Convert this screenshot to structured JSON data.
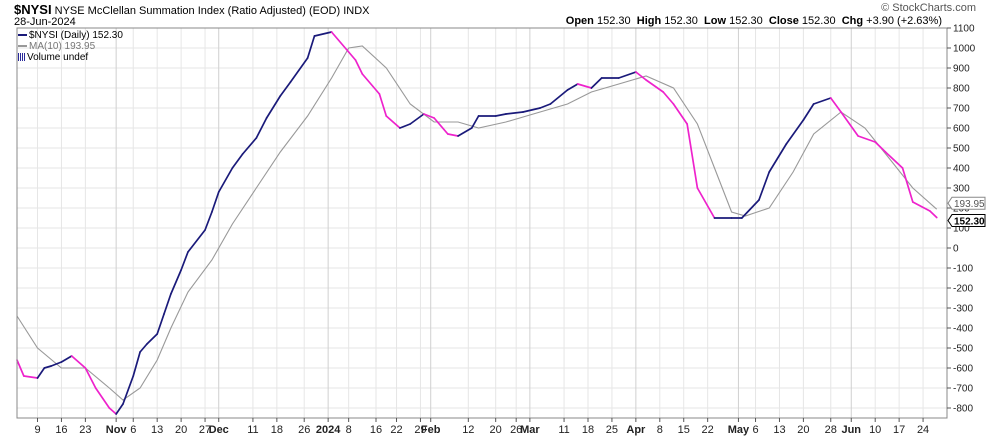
{
  "header": {
    "symbol": "$NYSI",
    "description": "NYSE McClellan Summation Index (Ratio Adjusted) (EOD)",
    "exchange": "INDX",
    "date": "28-Jun-2024",
    "brand": "© StockCharts.com",
    "open_label": "Open",
    "open": "152.30",
    "high_label": "High",
    "high": "152.30",
    "low_label": "Low",
    "low": "152.30",
    "close_label": "Close",
    "close": "152.30",
    "chg_label": "Chg",
    "chg": "+3.90 (+2.63%)"
  },
  "legend": {
    "price": "$NYSI (Daily) 152.30",
    "ma": "MA(10) 193.95",
    "volume": "Volume undef"
  },
  "colors": {
    "up": "#1a1a7a",
    "down": "#ee22cc",
    "ma": "#999999",
    "grid": "#e6e6e6",
    "axis": "#555555"
  },
  "chart_data": {
    "type": "line",
    "title": "NYSE McClellan Summation Index (Ratio Adjusted) (EOD)",
    "ylabel": "",
    "xlabel": "",
    "ylim": [
      -850,
      1100
    ],
    "y_ticks": [
      1100,
      1000,
      900,
      800,
      700,
      600,
      500,
      400,
      300,
      200,
      100,
      0,
      -100,
      -200,
      -300,
      -400,
      -500,
      -600,
      -700,
      -800
    ],
    "y_tick_labels": [
      "1100",
      "1000",
      "900",
      "800",
      "700",
      "600",
      "500",
      "400",
      "300",
      "200",
      "100",
      "0",
      "-100",
      "-200",
      "-300",
      "-400",
      "-500",
      "-600",
      "-700",
      "-800"
    ],
    "x_range": [
      "2023-10-03",
      "2024-07-01"
    ],
    "x_ticks": [
      {
        "date": "2023-10-09",
        "label": "9",
        "bold": false
      },
      {
        "date": "2023-10-16",
        "label": "16",
        "bold": false
      },
      {
        "date": "2023-10-23",
        "label": "23",
        "bold": false
      },
      {
        "date": "2023-11-01",
        "label": "Nov",
        "bold": true
      },
      {
        "date": "2023-11-06",
        "label": "6",
        "bold": false
      },
      {
        "date": "2023-11-13",
        "label": "13",
        "bold": false
      },
      {
        "date": "2023-11-20",
        "label": "20",
        "bold": false
      },
      {
        "date": "2023-11-27",
        "label": "27",
        "bold": false
      },
      {
        "date": "2023-12-01",
        "label": "Dec",
        "bold": true
      },
      {
        "date": "2023-12-11",
        "label": "11",
        "bold": false
      },
      {
        "date": "2023-12-18",
        "label": "18",
        "bold": false
      },
      {
        "date": "2023-12-26",
        "label": "26",
        "bold": false
      },
      {
        "date": "2024-01-02",
        "label": "2024",
        "bold": true
      },
      {
        "date": "2024-01-08",
        "label": "8",
        "bold": false
      },
      {
        "date": "2024-01-16",
        "label": "16",
        "bold": false
      },
      {
        "date": "2024-01-22",
        "label": "22",
        "bold": false
      },
      {
        "date": "2024-01-29",
        "label": "29",
        "bold": false
      },
      {
        "date": "2024-02-01",
        "label": "Feb",
        "bold": true
      },
      {
        "date": "2024-02-12",
        "label": "12",
        "bold": false
      },
      {
        "date": "2024-02-20",
        "label": "20",
        "bold": false
      },
      {
        "date": "2024-02-26",
        "label": "26",
        "bold": false
      },
      {
        "date": "2024-03-01",
        "label": "Mar",
        "bold": true
      },
      {
        "date": "2024-03-11",
        "label": "11",
        "bold": false
      },
      {
        "date": "2024-03-18",
        "label": "18",
        "bold": false
      },
      {
        "date": "2024-03-25",
        "label": "25",
        "bold": false
      },
      {
        "date": "2024-04-01",
        "label": "Apr",
        "bold": true
      },
      {
        "date": "2024-04-08",
        "label": "8",
        "bold": false
      },
      {
        "date": "2024-04-15",
        "label": "15",
        "bold": false
      },
      {
        "date": "2024-04-22",
        "label": "22",
        "bold": false
      },
      {
        "date": "2024-05-01",
        "label": "May",
        "bold": true
      },
      {
        "date": "2024-05-06",
        "label": "6",
        "bold": false
      },
      {
        "date": "2024-05-13",
        "label": "13",
        "bold": false
      },
      {
        "date": "2024-05-20",
        "label": "20",
        "bold": false
      },
      {
        "date": "2024-05-28",
        "label": "28",
        "bold": false
      },
      {
        "date": "2024-06-03",
        "label": "Jun",
        "bold": true
      },
      {
        "date": "2024-06-10",
        "label": "10",
        "bold": false
      },
      {
        "date": "2024-06-17",
        "label": "17",
        "bold": false
      },
      {
        "date": "2024-06-24",
        "label": "24",
        "bold": false
      }
    ],
    "last_values": [
      {
        "label": "193.95",
        "value": 193.95,
        "bold": false
      },
      {
        "label": "152.30",
        "value": 152.3,
        "bold": true
      }
    ],
    "series": [
      {
        "name": "$NYSI (Daily) 152.30",
        "x": [
          "2023-10-03",
          "2023-10-05",
          "2023-10-09",
          "2023-10-11",
          "2023-10-13",
          "2023-10-16",
          "2023-10-19",
          "2023-10-23",
          "2023-10-26",
          "2023-10-30",
          "2023-11-01",
          "2023-11-03",
          "2023-11-06",
          "2023-11-08",
          "2023-11-10",
          "2023-11-13",
          "2023-11-15",
          "2023-11-17",
          "2023-11-20",
          "2023-11-22",
          "2023-11-27",
          "2023-11-29",
          "2023-12-01",
          "2023-12-05",
          "2023-12-08",
          "2023-12-12",
          "2023-12-15",
          "2023-12-19",
          "2023-12-22",
          "2023-12-27",
          "2023-12-29",
          "2024-01-03",
          "2024-01-08",
          "2024-01-10",
          "2024-01-12",
          "2024-01-17",
          "2024-01-19",
          "2024-01-23",
          "2024-01-26",
          "2024-01-30",
          "2024-02-02",
          "2024-02-06",
          "2024-02-09",
          "2024-02-13",
          "2024-02-15",
          "2024-02-20",
          "2024-02-23",
          "2024-02-28",
          "2024-03-04",
          "2024-03-07",
          "2024-03-12",
          "2024-03-15",
          "2024-03-19",
          "2024-03-22",
          "2024-03-27",
          "2024-04-01",
          "2024-04-04",
          "2024-04-09",
          "2024-04-12",
          "2024-04-16",
          "2024-04-19",
          "2024-04-24",
          "2024-04-29",
          "2024-05-02",
          "2024-05-07",
          "2024-05-10",
          "2024-05-15",
          "2024-05-20",
          "2024-05-23",
          "2024-05-28",
          "2024-05-31",
          "2024-06-05",
          "2024-06-10",
          "2024-06-13",
          "2024-06-18",
          "2024-06-21",
          "2024-06-26",
          "2024-06-28"
        ],
        "values": [
          -560,
          -640,
          -650,
          -600,
          -590,
          -570,
          -540,
          -600,
          -700,
          -800,
          -830,
          -780,
          -640,
          -520,
          -480,
          -430,
          -330,
          -230,
          -110,
          -20,
          90,
          180,
          280,
          400,
          470,
          550,
          650,
          760,
          830,
          950,
          1060,
          1080,
          980,
          940,
          870,
          770,
          660,
          600,
          620,
          670,
          650,
          570,
          560,
          600,
          660,
          660,
          670,
          680,
          700,
          720,
          790,
          820,
          800,
          850,
          850,
          880,
          840,
          780,
          720,
          620,
          300,
          150,
          150,
          150,
          240,
          380,
          520,
          640,
          720,
          750,
          680,
          560,
          530,
          480,
          400,
          230,
          185,
          152.3
        ],
        "color_rule": "up segments #1a1a7a, down segments #ee22cc"
      },
      {
        "name": "MA(10) 193.95",
        "x": [
          "2023-10-03",
          "2023-10-09",
          "2023-10-16",
          "2023-10-23",
          "2023-10-30",
          "2023-11-03",
          "2023-11-08",
          "2023-11-13",
          "2023-11-17",
          "2023-11-22",
          "2023-11-29",
          "2023-12-05",
          "2023-12-12",
          "2023-12-19",
          "2023-12-27",
          "2024-01-03",
          "2024-01-08",
          "2024-01-12",
          "2024-01-19",
          "2024-01-26",
          "2024-02-02",
          "2024-02-09",
          "2024-02-15",
          "2024-02-23",
          "2024-03-04",
          "2024-03-12",
          "2024-03-19",
          "2024-03-27",
          "2024-04-04",
          "2024-04-12",
          "2024-04-19",
          "2024-04-24",
          "2024-04-29",
          "2024-05-03",
          "2024-05-10",
          "2024-05-17",
          "2024-05-23",
          "2024-05-31",
          "2024-06-07",
          "2024-06-14",
          "2024-06-21",
          "2024-06-28"
        ],
        "values": [
          -340,
          -500,
          -600,
          -600,
          -700,
          -760,
          -700,
          -560,
          -400,
          -220,
          -60,
          120,
          300,
          480,
          660,
          850,
          1000,
          1010,
          900,
          720,
          630,
          630,
          600,
          630,
          680,
          720,
          780,
          820,
          860,
          800,
          620,
          400,
          180,
          160,
          200,
          380,
          570,
          680,
          600,
          450,
          300,
          193.95
        ],
        "color": "#999999"
      }
    ]
  }
}
